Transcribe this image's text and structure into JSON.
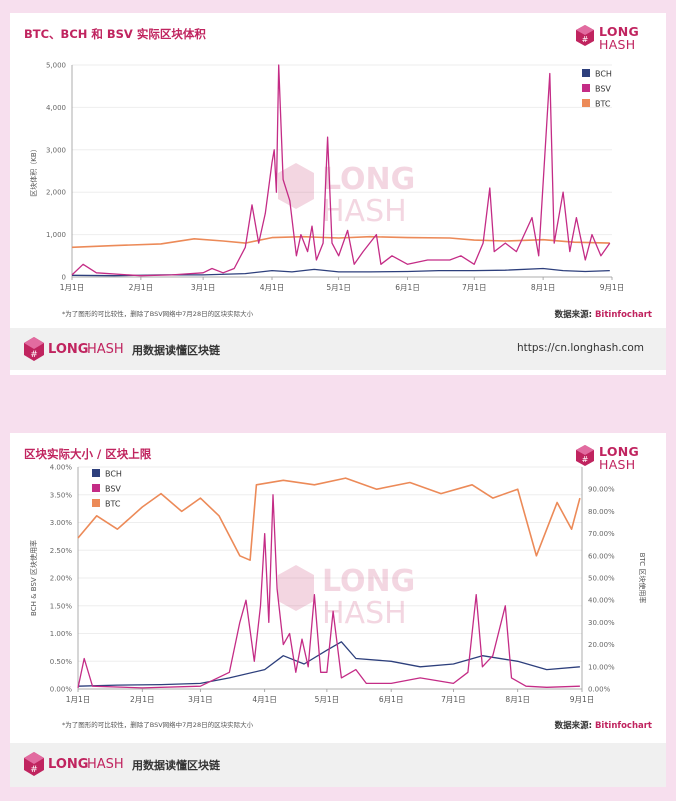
{
  "charts": [
    {
      "title": "BTC、BCH 和 BSV 实际区块体积",
      "footnote": "*为了图形的可比较性，删除了BSV网络中7月28日的区块实际大小",
      "source_label": "数据来源:",
      "source_name": "Bitinfochart"
    },
    {
      "title": "区块实际大小 / 区块上限",
      "footnote": "*为了图形的可比较性，删除了BSV网络中7月28日的区块实际大小",
      "source_label": "数据来源:",
      "source_name": "Bitinfochart"
    }
  ],
  "logo": {
    "part1": "LONG",
    "part2": "HASH"
  },
  "footer": {
    "slogan": "用数据读懂区块链",
    "url": "https://cn.longhash.com"
  },
  "colors": {
    "BCH": "#2d3f7c",
    "BSV": "#c42c86",
    "BTC": "#ec8a58",
    "brand": "#c0245f"
  },
  "chart_data": [
    {
      "type": "line",
      "ylabel": "区块体积（KB）",
      "ylim": [
        0,
        5000
      ],
      "yticks": [
        0,
        "1,000",
        "2,000",
        "3,000",
        "4,000",
        "5,000"
      ],
      "x_range": [
        "2019-01-01",
        "2019-09-01"
      ],
      "xticks": [
        "1月1日",
        "2月1日",
        "3月1日",
        "4月1日",
        "5月1日",
        "6月1日",
        "7月1日",
        "8月1日",
        "9月1日"
      ],
      "legend_position": "top-right",
      "series": [
        {
          "name": "BCH",
          "points": [
            [
              "01-01",
              40
            ],
            [
              "01-20",
              30
            ],
            [
              "02-10",
              50
            ],
            [
              "03-01",
              50
            ],
            [
              "03-20",
              80
            ],
            [
              "04-01",
              150
            ],
            [
              "04-10",
              120
            ],
            [
              "04-20",
              180
            ],
            [
              "05-01",
              120
            ],
            [
              "05-15",
              120
            ],
            [
              "06-01",
              130
            ],
            [
              "06-15",
              150
            ],
            [
              "07-01",
              150
            ],
            [
              "07-15",
              160
            ],
            [
              "08-01",
              200
            ],
            [
              "08-10",
              150
            ],
            [
              "08-20",
              130
            ],
            [
              "08-31",
              150
            ]
          ]
        },
        {
          "name": "BSV",
          "points": [
            [
              "01-01",
              50
            ],
            [
              "01-06",
              300
            ],
            [
              "01-12",
              100
            ],
            [
              "02-01",
              30
            ],
            [
              "02-15",
              50
            ],
            [
              "03-01",
              100
            ],
            [
              "03-05",
              200
            ],
            [
              "03-10",
              100
            ],
            [
              "03-15",
              200
            ],
            [
              "03-20",
              700
            ],
            [
              "03-23",
              1700
            ],
            [
              "03-26",
              800
            ],
            [
              "03-29",
              1500
            ],
            [
              "04-01",
              2700
            ],
            [
              "04-02",
              3000
            ],
            [
              "04-03",
              2000
            ],
            [
              "04-04",
              5000
            ],
            [
              "04-06",
              2300
            ],
            [
              "04-09",
              1800
            ],
            [
              "04-12",
              500
            ],
            [
              "04-14",
              1000
            ],
            [
              "04-17",
              600
            ],
            [
              "04-19",
              1200
            ],
            [
              "04-21",
              400
            ],
            [
              "04-24",
              800
            ],
            [
              "04-26",
              3300
            ],
            [
              "04-28",
              800
            ],
            [
              "05-01",
              500
            ],
            [
              "05-05",
              1100
            ],
            [
              "05-08",
              300
            ],
            [
              "05-12",
              600
            ],
            [
              "05-18",
              1000
            ],
            [
              "05-20",
              300
            ],
            [
              "05-25",
              500
            ],
            [
              "06-01",
              300
            ],
            [
              "06-10",
              400
            ],
            [
              "06-20",
              400
            ],
            [
              "06-25",
              500
            ],
            [
              "07-01",
              300
            ],
            [
              "07-05",
              800
            ],
            [
              "07-08",
              2100
            ],
            [
              "07-10",
              600
            ],
            [
              "07-15",
              800
            ],
            [
              "07-20",
              600
            ],
            [
              "07-27",
              1400
            ],
            [
              "07-30",
              500
            ],
            [
              "08-04",
              4800
            ],
            [
              "08-06",
              800
            ],
            [
              "08-10",
              2000
            ],
            [
              "08-13",
              600
            ],
            [
              "08-16",
              1400
            ],
            [
              "08-20",
              400
            ],
            [
              "08-23",
              1000
            ],
            [
              "08-27",
              500
            ],
            [
              "08-31",
              800
            ]
          ]
        },
        {
          "name": "BTC",
          "points": [
            [
              "01-01",
              700
            ],
            [
              "01-20",
              740
            ],
            [
              "02-10",
              780
            ],
            [
              "02-25",
              900
            ],
            [
              "03-10",
              850
            ],
            [
              "03-20",
              800
            ],
            [
              "04-01",
              930
            ],
            [
              "04-15",
              950
            ],
            [
              "05-01",
              920
            ],
            [
              "05-15",
              950
            ],
            [
              "06-01",
              930
            ],
            [
              "06-20",
              920
            ],
            [
              "07-01",
              870
            ],
            [
              "07-15",
              850
            ],
            [
              "08-01",
              880
            ],
            [
              "08-15",
              820
            ],
            [
              "08-31",
              800
            ]
          ]
        }
      ]
    },
    {
      "type": "line",
      "ylabel": "BCH & BSV 区块使用率",
      "ylim": [
        0,
        4
      ],
      "yticks": [
        "0.00%",
        "0.50%",
        "1.00%",
        "1.50%",
        "2.00%",
        "2.50%",
        "3.00%",
        "3.50%",
        "4.00%"
      ],
      "y2label": "BTC 区块使用率",
      "y2lim": [
        0,
        100
      ],
      "y2ticks": [
        "0.00%",
        "10.00%",
        "20.00%",
        "30.00%",
        "40.00%",
        "50.00%",
        "60.00%",
        "70.00%",
        "80.00%",
        "90.00%"
      ],
      "x_range": [
        "2019-01-01",
        "2019-09-01"
      ],
      "xticks": [
        "1月1日",
        "2月1日",
        "3月1日",
        "4月1日",
        "5月1日",
        "6月1日",
        "7月1日",
        "8月1日",
        "9月1日"
      ],
      "legend_position": "top-left",
      "series": [
        {
          "name": "BCH",
          "axis": "left",
          "points": [
            [
              "01-01",
              0.05
            ],
            [
              "01-20",
              0.07
            ],
            [
              "02-10",
              0.08
            ],
            [
              "03-01",
              0.1
            ],
            [
              "03-15",
              0.2
            ],
            [
              "04-01",
              0.35
            ],
            [
              "04-10",
              0.6
            ],
            [
              "04-20",
              0.45
            ],
            [
              "05-01",
              0.7
            ],
            [
              "05-08",
              0.85
            ],
            [
              "05-15",
              0.55
            ],
            [
              "06-01",
              0.5
            ],
            [
              "06-15",
              0.4
            ],
            [
              "07-01",
              0.45
            ],
            [
              "07-15",
              0.6
            ],
            [
              "08-01",
              0.5
            ],
            [
              "08-15",
              0.35
            ],
            [
              "08-31",
              0.4
            ]
          ]
        },
        {
          "name": "BSV",
          "axis": "left",
          "points": [
            [
              "01-01",
              0.02
            ],
            [
              "01-04",
              0.55
            ],
            [
              "01-08",
              0.05
            ],
            [
              "02-01",
              0.02
            ],
            [
              "03-01",
              0.05
            ],
            [
              "03-15",
              0.3
            ],
            [
              "03-20",
              1.2
            ],
            [
              "03-23",
              1.6
            ],
            [
              "03-27",
              0.5
            ],
            [
              "03-30",
              1.5
            ],
            [
              "04-01",
              2.8
            ],
            [
              "04-03",
              1.2
            ],
            [
              "04-05",
              3.5
            ],
            [
              "04-07",
              1.8
            ],
            [
              "04-10",
              0.8
            ],
            [
              "04-13",
              1.0
            ],
            [
              "04-16",
              0.3
            ],
            [
              "04-19",
              0.9
            ],
            [
              "04-22",
              0.4
            ],
            [
              "04-25",
              1.7
            ],
            [
              "04-28",
              0.3
            ],
            [
              "05-01",
              0.3
            ],
            [
              "05-04",
              1.4
            ],
            [
              "05-08",
              0.2
            ],
            [
              "05-15",
              0.35
            ],
            [
              "05-20",
              0.1
            ],
            [
              "06-01",
              0.1
            ],
            [
              "06-15",
              0.2
            ],
            [
              "07-01",
              0.1
            ],
            [
              "07-08",
              0.3
            ],
            [
              "07-12",
              1.7
            ],
            [
              "07-15",
              0.4
            ],
            [
              "07-20",
              0.6
            ],
            [
              "07-26",
              1.5
            ],
            [
              "07-29",
              0.2
            ],
            [
              "08-05",
              0.05
            ],
            [
              "08-15",
              0.03
            ],
            [
              "08-31",
              0.05
            ]
          ]
        },
        {
          "name": "BTC",
          "axis": "right",
          "points": [
            [
              "01-01",
              68
            ],
            [
              "01-10",
              78
            ],
            [
              "01-20",
              72
            ],
            [
              "02-01",
              82
            ],
            [
              "02-10",
              88
            ],
            [
              "02-20",
              80
            ],
            [
              "03-01",
              86
            ],
            [
              "03-10",
              78
            ],
            [
              "03-20",
              60
            ],
            [
              "03-25",
              58
            ],
            [
              "03-28",
              92
            ],
            [
              "04-10",
              94
            ],
            [
              "04-25",
              92
            ],
            [
              "05-10",
              95
            ],
            [
              "05-25",
              90
            ],
            [
              "06-10",
              93
            ],
            [
              "06-25",
              88
            ],
            [
              "07-10",
              92
            ],
            [
              "07-20",
              86
            ],
            [
              "08-01",
              90
            ],
            [
              "08-10",
              60
            ],
            [
              "08-20",
              84
            ],
            [
              "08-27",
              72
            ],
            [
              "08-31",
              86
            ]
          ]
        }
      ]
    }
  ]
}
